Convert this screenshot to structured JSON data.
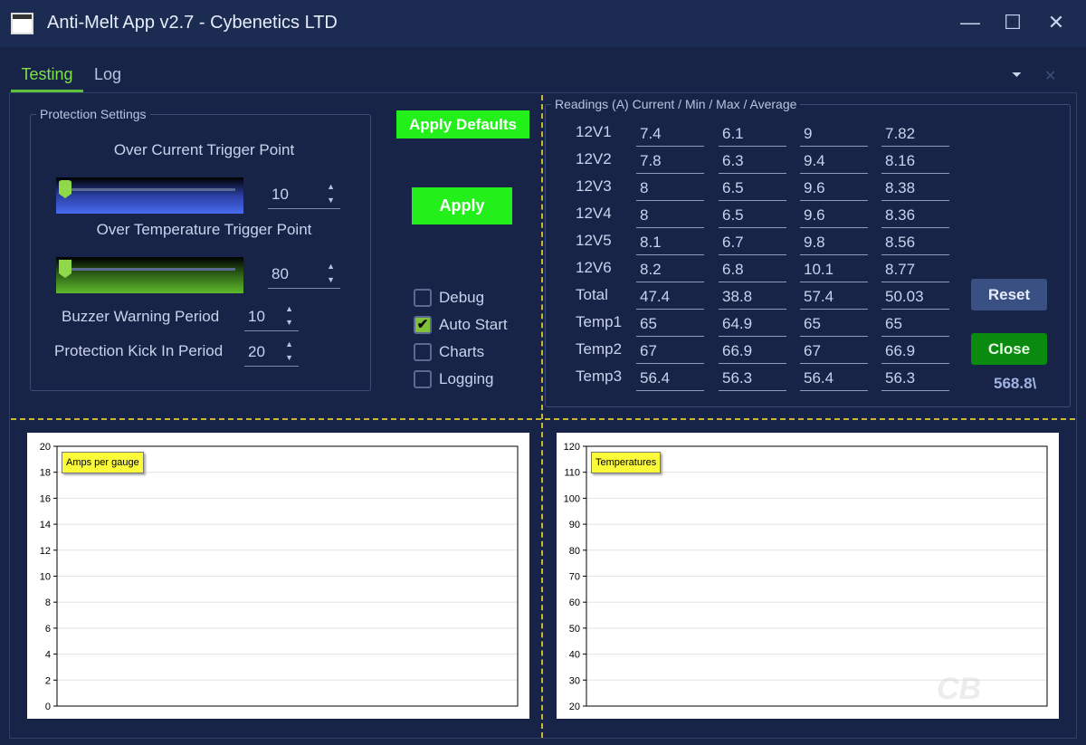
{
  "window": {
    "title": "Anti-Melt App v2.7 - Cybenetics LTD",
    "minimize": "—",
    "maximize": "☐",
    "close": "✕"
  },
  "tabs": [
    {
      "label": "Testing",
      "active": true
    },
    {
      "label": "Log",
      "active": false
    }
  ],
  "tabbar": {
    "dropdown": "⏷",
    "close": "✕"
  },
  "protection": {
    "legend": "Protection Settings",
    "over_current_label": "Over Current Trigger Point",
    "over_current_value": "10",
    "over_temp_label": "Over Temperature Trigger Point",
    "over_temp_value": "80",
    "buzzer_label": "Buzzer Warning Period",
    "buzzer_value": "10",
    "kick_label": "Protection Kick In Period",
    "kick_value": "20"
  },
  "buttons": {
    "apply_defaults": "Apply Defaults",
    "apply": "Apply",
    "reset": "Reset",
    "close": "Close"
  },
  "options": [
    {
      "label": "Debug",
      "checked": false
    },
    {
      "label": "Auto Start",
      "checked": true
    },
    {
      "label": "Charts",
      "checked": false
    },
    {
      "label": "Logging",
      "checked": false
    }
  ],
  "readings": {
    "legend": "Readings (A) Current / Min / Max / Average",
    "rows": [
      {
        "label": "12V1",
        "values": [
          "7.4",
          "6.1",
          "9",
          "7.82"
        ]
      },
      {
        "label": "12V2",
        "values": [
          "7.8",
          "6.3",
          "9.4",
          "8.16"
        ]
      },
      {
        "label": "12V3",
        "values": [
          "8",
          "6.5",
          "9.6",
          "8.38"
        ]
      },
      {
        "label": "12V4",
        "values": [
          "8",
          "6.5",
          "9.6",
          "8.36"
        ]
      },
      {
        "label": "12V5",
        "values": [
          "8.1",
          "6.7",
          "9.8",
          "8.56"
        ]
      },
      {
        "label": "12V6",
        "values": [
          "8.2",
          "6.8",
          "10.1",
          "8.77"
        ]
      },
      {
        "label": "Total",
        "values": [
          "47.4",
          "38.8",
          "57.4",
          "50.03"
        ]
      },
      {
        "label": "Temp1",
        "values": [
          "65",
          "64.9",
          "65",
          "65"
        ]
      },
      {
        "label": "Temp2",
        "values": [
          "67",
          "66.9",
          "67",
          "66.9"
        ]
      },
      {
        "label": "Temp3",
        "values": [
          "56.4",
          "56.3",
          "56.4",
          "56.3"
        ]
      }
    ],
    "power": "568.8\\"
  },
  "chart_data": [
    {
      "type": "line",
      "title": "Amps per gauge",
      "ylim": [
        0,
        20
      ],
      "yticks": [
        "0",
        "2",
        "4",
        "6",
        "8",
        "10",
        "12",
        "14",
        "16",
        "18",
        "20"
      ],
      "series": []
    },
    {
      "type": "line",
      "title": "Temperatures",
      "ylim": [
        20,
        120
      ],
      "yticks": [
        "20",
        "30",
        "40",
        "50",
        "60",
        "70",
        "80",
        "90",
        "100",
        "110",
        "120"
      ],
      "series": []
    }
  ],
  "watermark": "ComputerBase"
}
